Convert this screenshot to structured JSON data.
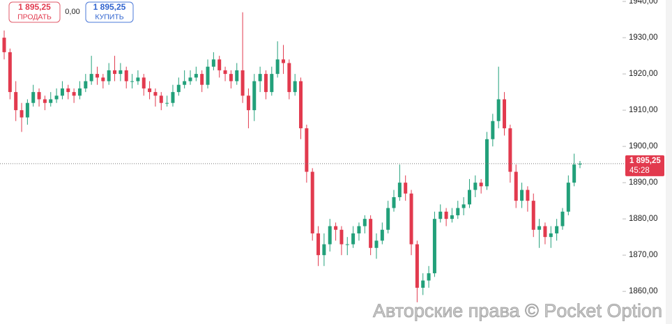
{
  "chart_data": {
    "type": "candlestick",
    "sell": {
      "label": "1 895,25",
      "action": "ПРОДАТЬ"
    },
    "spread": "0,00",
    "buy": {
      "label": "1 895,25",
      "action": "КУПИТЬ"
    },
    "current_price": {
      "value": 1895.25,
      "label": "1 895,25"
    },
    "timer": "45:28",
    "watermark": "Авторские права © Pocket Option",
    "up_color": "#22a07a",
    "down_color": "#e23a4e",
    "ylim": [
      1851,
      1940.4
    ],
    "yticks": [
      {
        "value": 1860,
        "label": "1860,00"
      },
      {
        "value": 1870,
        "label": "1870,00"
      },
      {
        "value": 1880,
        "label": "1880,00"
      },
      {
        "value": 1890,
        "label": "1890,00"
      },
      {
        "value": 1900,
        "label": "1900,00"
      },
      {
        "value": 1910,
        "label": "1910,00"
      },
      {
        "value": 1920,
        "label": "1920,00"
      },
      {
        "value": 1930,
        "label": "1930,00"
      },
      {
        "value": 1940,
        "label": "1940,00"
      }
    ],
    "open": [
      1930,
      1926,
      1915,
      1910,
      1908,
      1912,
      1915,
      1913,
      1912,
      1913,
      1914,
      1916,
      1915,
      1914,
      1916,
      1918,
      1920,
      1919,
      1918,
      1921,
      1920,
      1921,
      1918,
      1918,
      1919,
      1916,
      1915,
      1914,
      1912,
      1912,
      1915,
      1917,
      1918,
      1919,
      1920,
      1917,
      1922,
      1924,
      1921,
      1920,
      1918,
      1921,
      1914,
      1910,
      1918,
      1920,
      1915,
      1920,
      1924,
      1923,
      1915,
      1918,
      1905,
      1893,
      1876,
      1870,
      1873,
      1878,
      1877,
      1873,
      1873,
      1876,
      1878,
      1880,
      1872,
      1874,
      1877,
      1883,
      1886,
      1890,
      1887,
      1873,
      1861,
      1863,
      1865,
      1880,
      1882,
      1880,
      1881,
      1883,
      1884,
      1888,
      1890,
      1889,
      1902,
      1907,
      1913,
      1905,
      1893,
      1885,
      1888,
      1885,
      1877,
      1878,
      1875,
      1876,
      1878,
      1882,
      1890,
      1895
    ],
    "high": [
      1932,
      1927,
      1918,
      1912,
      1913,
      1917,
      1916,
      1914,
      1915,
      1916,
      1918,
      1917,
      1916,
      1918,
      1920,
      1925,
      1922,
      1920,
      1923,
      1925,
      1923,
      1922,
      1920,
      1921,
      1920,
      1918,
      1916,
      1915,
      1914,
      1917,
      1919,
      1921,
      1921,
      1922,
      1921,
      1924,
      1926,
      1925,
      1922,
      1921,
      1923,
      1937,
      1916,
      1920,
      1922,
      1921,
      1922,
      1929,
      1928,
      1924,
      1920,
      1919,
      1906,
      1894,
      1878,
      1876,
      1880,
      1879,
      1878,
      1875,
      1878,
      1879,
      1881,
      1881,
      1876,
      1879,
      1885,
      1888,
      1895,
      1892,
      1888,
      1874,
      1865,
      1867,
      1882,
      1884,
      1883,
      1883,
      1885,
      1886,
      1891,
      1892,
      1891,
      1904,
      1909,
      1922,
      1915,
      1906,
      1895,
      1890,
      1889,
      1887,
      1880,
      1879,
      1878,
      1880,
      1883,
      1892,
      1898,
      1896
    ],
    "low": [
      1924,
      1913,
      1907,
      1904,
      1906,
      1911,
      1911,
      1910,
      1911,
      1912,
      1913,
      1913,
      1912,
      1913,
      1915,
      1917,
      1917,
      1916,
      1917,
      1918,
      1918,
      1916,
      1916,
      1917,
      1914,
      1913,
      1911,
      1910,
      1911,
      1911,
      1914,
      1916,
      1917,
      1918,
      1915,
      1916,
      1921,
      1919,
      1918,
      1916,
      1917,
      1912,
      1905,
      1907,
      1915,
      1913,
      1914,
      1919,
      1920,
      1913,
      1914,
      1902,
      1890,
      1874,
      1867,
      1867,
      1871,
      1874,
      1870,
      1870,
      1872,
      1874,
      1876,
      1870,
      1869,
      1873,
      1876,
      1882,
      1885,
      1885,
      1870,
      1857,
      1859,
      1861,
      1864,
      1879,
      1878,
      1879,
      1880,
      1881,
      1883,
      1886,
      1887,
      1888,
      1900,
      1905,
      1903,
      1890,
      1883,
      1883,
      1882,
      1875,
      1872,
      1873,
      1872,
      1874,
      1877,
      1881,
      1889,
      1894
    ],
    "close": [
      1926,
      1915,
      1910,
      1908,
      1912,
      1915,
      1913,
      1912,
      1913,
      1914,
      1916,
      1915,
      1914,
      1916,
      1918,
      1920,
      1919,
      1918,
      1921,
      1920,
      1921,
      1918,
      1918,
      1919,
      1916,
      1915,
      1914,
      1912,
      1912,
      1915,
      1917,
      1918,
      1919,
      1920,
      1917,
      1922,
      1924,
      1921,
      1920,
      1918,
      1921,
      1914,
      1910,
      1918,
      1920,
      1915,
      1920,
      1924,
      1923,
      1915,
      1918,
      1905,
      1893,
      1876,
      1870,
      1873,
      1878,
      1877,
      1873,
      1873,
      1876,
      1878,
      1880,
      1872,
      1874,
      1877,
      1883,
      1886,
      1890,
      1887,
      1873,
      1861,
      1863,
      1865,
      1880,
      1882,
      1880,
      1881,
      1883,
      1884,
      1888,
      1890,
      1889,
      1902,
      1907,
      1913,
      1905,
      1893,
      1885,
      1888,
      1885,
      1877,
      1878,
      1875,
      1876,
      1878,
      1882,
      1890,
      1895,
      1895.25
    ]
  }
}
